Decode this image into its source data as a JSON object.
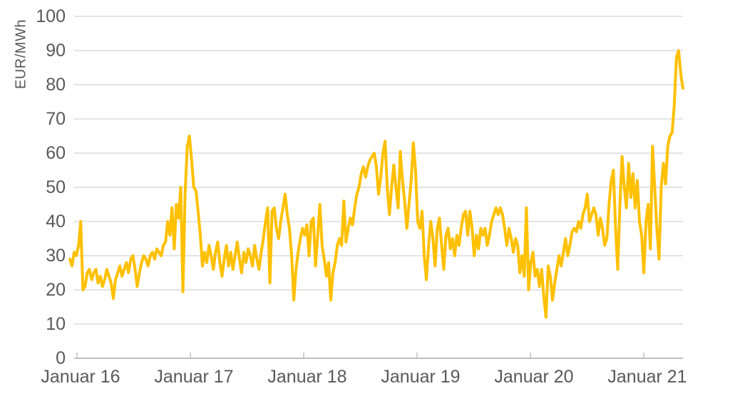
{
  "chart_data": {
    "type": "line",
    "title": "",
    "xlabel": "",
    "ylabel": "EUR/MWh",
    "ylim": [
      0,
      100
    ],
    "y_ticks": [
      0,
      10,
      20,
      30,
      40,
      50,
      60,
      70,
      80,
      90,
      100
    ],
    "x_tick_labels": [
      "Januar 16",
      "Januar 17",
      "Januar 18",
      "Januar 19",
      "Januar 20",
      "Januar 21"
    ],
    "grid": "horizontal-only",
    "legend": "none",
    "points_per_year": 52,
    "line_color": "#FFC000",
    "axis_text_color": "#595959",
    "gridline_color": "#DBDBDB",
    "axis_line_color": "#BFBFBF",
    "values": [
      29,
      27,
      31,
      30,
      33,
      40,
      20,
      21,
      25,
      26,
      23,
      25,
      26,
      22,
      24,
      21,
      23,
      26,
      24,
      22,
      17.5,
      23,
      25,
      27,
      24,
      26,
      28,
      25,
      29,
      30,
      26,
      21,
      25,
      28,
      30,
      29,
      27,
      30,
      31,
      29,
      32,
      31,
      30,
      33,
      34,
      40,
      36,
      44,
      32,
      45,
      41,
      50,
      19.5,
      48,
      62,
      65,
      58,
      50,
      49,
      43,
      36,
      27,
      31,
      28,
      33,
      30,
      26,
      31,
      34,
      28,
      24,
      29,
      33,
      27,
      31,
      26,
      30,
      34,
      29,
      25,
      31,
      28,
      32,
      30,
      27,
      33,
      29,
      26,
      31,
      35,
      40,
      44,
      22,
      43,
      44,
      38,
      35,
      40,
      44,
      48,
      42,
      38,
      30,
      17,
      26,
      31,
      35,
      38,
      36,
      39,
      30,
      40,
      41,
      27,
      36,
      45,
      33,
      29,
      24,
      28,
      17,
      25,
      28,
      33,
      35,
      33,
      46,
      34,
      38,
      41,
      39,
      44,
      48,
      50,
      54,
      56,
      53,
      56,
      58,
      59,
      60,
      56,
      48,
      53,
      60,
      63.5,
      50,
      42,
      50,
      56.5,
      50,
      44,
      60.5,
      52,
      46,
      38,
      45,
      52,
      63,
      55,
      40,
      38,
      43,
      30,
      23,
      33,
      40,
      35,
      27,
      38,
      41,
      33,
      26,
      36,
      38,
      32,
      35,
      30,
      36,
      33,
      38,
      42,
      43,
      36,
      43,
      38,
      30,
      36,
      32,
      38,
      36,
      38,
      33,
      36,
      40,
      42,
      44,
      42,
      44,
      42,
      38,
      33,
      38,
      35,
      31,
      35,
      33,
      25,
      30,
      24,
      44,
      20,
      28,
      31,
      24,
      26,
      21,
      26,
      18,
      12,
      27,
      24,
      17,
      22,
      26,
      30,
      27,
      31,
      35,
      30,
      33,
      37,
      38,
      37,
      40,
      38,
      42,
      44,
      48,
      40,
      42,
      44,
      42,
      36,
      41,
      38,
      33,
      35,
      45,
      52,
      55,
      38,
      26,
      45,
      59,
      50,
      44,
      57,
      47,
      54,
      44,
      52,
      40,
      36,
      25,
      40,
      45,
      32,
      62,
      50,
      38,
      29,
      50,
      57,
      51,
      62,
      65,
      66,
      74,
      88,
      90,
      83,
      79
    ]
  }
}
